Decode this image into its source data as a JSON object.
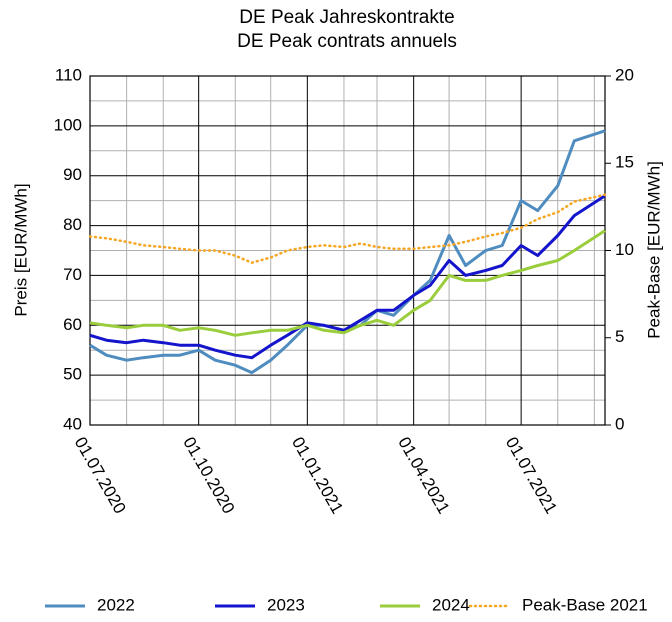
{
  "chart_data": {
    "type": "line",
    "title": [
      "DE Peak Jahreskontrakte",
      "DE Peak contrats annuels"
    ],
    "y_label": "Preis [EUR/MWh]",
    "y2_label": "Peak-Base [EUR/MWh]",
    "x": [
      "2020-07-01",
      "2020-07-15",
      "2020-08-01",
      "2020-08-15",
      "2020-09-01",
      "2020-09-15",
      "2020-10-01",
      "2020-10-15",
      "2020-11-01",
      "2020-11-15",
      "2020-12-01",
      "2020-12-15",
      "2021-01-01",
      "2021-01-15",
      "2021-02-01",
      "2021-02-15",
      "2021-03-01",
      "2021-03-15",
      "2021-04-01",
      "2021-04-15",
      "2021-05-01",
      "2021-05-15",
      "2021-06-01",
      "2021-06-15",
      "2021-07-01",
      "2021-07-15",
      "2021-08-01",
      "2021-08-15",
      "2021-09-10"
    ],
    "series": [
      {
        "name": "2022",
        "color": "#4f8cc0",
        "values": [
          56,
          54,
          53,
          53.5,
          54,
          54,
          55,
          53,
          52,
          50.5,
          53,
          56,
          60,
          60,
          59,
          60,
          63,
          62,
          66,
          69,
          78,
          72,
          75,
          76,
          85,
          83,
          88,
          97,
          99
        ]
      },
      {
        "name": "2023",
        "color": "#1414cc",
        "values": [
          58,
          57,
          56.5,
          57,
          56.5,
          56,
          56,
          55,
          54,
          53.5,
          56,
          58,
          60.5,
          60,
          59,
          61,
          63,
          63,
          66,
          68,
          73,
          70,
          71,
          72,
          76,
          74,
          78,
          82,
          86
        ]
      },
      {
        "name": "2024",
        "color": "#9acd3c",
        "values": [
          60.5,
          60,
          59.5,
          60,
          60,
          59,
          59.5,
          59,
          58,
          58.5,
          59,
          59,
          60,
          59,
          58.5,
          60,
          61,
          60,
          63,
          65,
          70,
          69,
          69,
          70,
          71,
          72,
          73,
          75,
          79
        ]
      },
      {
        "name": "Peak-Base 2021",
        "color": "#f5a623",
        "axis": "y2",
        "dotted": true,
        "values": [
          10.8,
          10.7,
          10.5,
          10.3,
          10.2,
          10.1,
          10.0,
          10.0,
          9.7,
          9.3,
          9.6,
          10.0,
          10.2,
          10.3,
          10.2,
          10.4,
          10.2,
          10.1,
          10.1,
          10.2,
          10.3,
          10.5,
          10.8,
          11.0,
          11.3,
          11.8,
          12.2,
          12.8,
          13.2
        ]
      }
    ],
    "xlim": [
      "2020-07-01",
      "2021-09-10"
    ],
    "xticks": [
      {
        "value": "2020-07-01",
        "label": "01.07.2020"
      },
      {
        "value": "2020-10-01",
        "label": "01.10.2020"
      },
      {
        "value": "2021-01-01",
        "label": "01.01.2021"
      },
      {
        "value": "2021-04-01",
        "label": "01.04.2021"
      },
      {
        "value": "2021-07-01",
        "label": "01.07.2021"
      }
    ],
    "xminor": [
      "2020-08-01",
      "2020-09-01",
      "2020-11-01",
      "2020-12-01",
      "2021-02-01",
      "2021-03-01",
      "2021-05-01",
      "2021-06-01",
      "2021-08-01",
      "2021-09-01"
    ],
    "ylim": [
      40,
      110
    ],
    "yticks": [
      40,
      50,
      60,
      70,
      80,
      90,
      100,
      110
    ],
    "yminor": [
      45,
      55,
      65,
      75,
      85,
      95,
      105
    ],
    "y2lim": [
      0,
      20
    ],
    "y2ticks": [
      0,
      5,
      10,
      15,
      20
    ],
    "grid": true
  }
}
